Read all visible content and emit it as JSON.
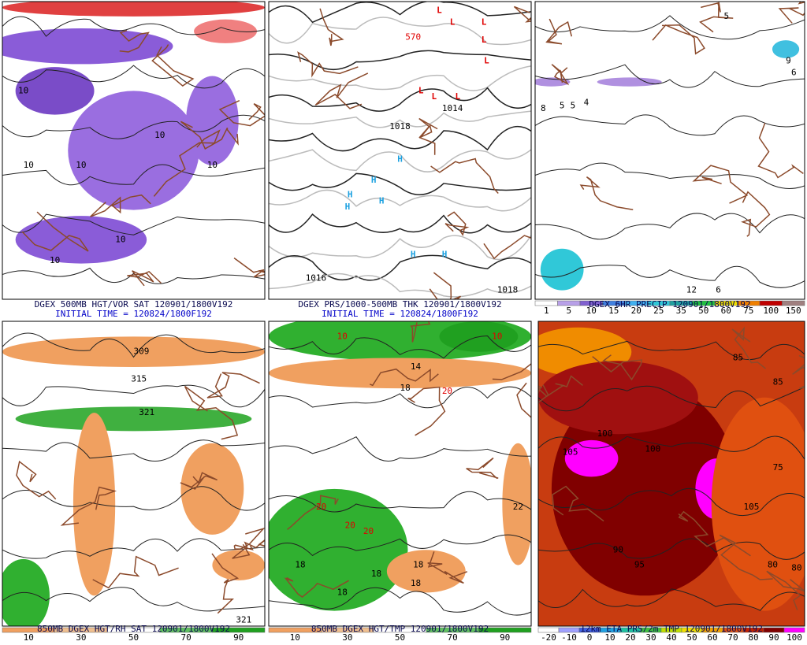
{
  "panels": [
    {
      "title": "DGEX 500MB HGT/VOR SAT 120901/1800V192",
      "subtitle": "INITIAL TIME = 120824/1800F192",
      "labels": [
        {
          "text": "10",
          "color": "#000"
        },
        {
          "text": "10",
          "color": "#000"
        },
        {
          "text": "10",
          "color": "#000"
        },
        {
          "text": "10",
          "color": "#000"
        },
        {
          "text": "10",
          "color": "#000"
        },
        {
          "text": "10",
          "color": "#000"
        },
        {
          "text": "10",
          "color": "#000"
        }
      ]
    },
    {
      "title": "DGEX PRS/1000-500MB THK 120901/1800V192",
      "subtitle": "INITIAL TIME = 120824/1800F192",
      "labels": [
        {
          "text": "L",
          "color": "#e00000"
        },
        {
          "text": "L",
          "color": "#e00000"
        },
        {
          "text": "L",
          "color": "#e00000"
        },
        {
          "text": "L",
          "color": "#e00000"
        },
        {
          "text": "L",
          "color": "#e00000"
        },
        {
          "text": "L",
          "color": "#e00000"
        },
        {
          "text": "L",
          "color": "#e00000"
        },
        {
          "text": "L",
          "color": "#e00000"
        },
        {
          "text": "H",
          "color": "#1aa0e0"
        },
        {
          "text": "H",
          "color": "#1aa0e0"
        },
        {
          "text": "H",
          "color": "#1aa0e0"
        },
        {
          "text": "H",
          "color": "#1aa0e0"
        },
        {
          "text": "H",
          "color": "#1aa0e0"
        },
        {
          "text": "H",
          "color": "#1aa0e0"
        },
        {
          "text": "H",
          "color": "#1aa0e0"
        },
        {
          "text": "1018",
          "color": "#000"
        },
        {
          "text": "1014",
          "color": "#000"
        },
        {
          "text": "1016",
          "color": "#000"
        },
        {
          "text": "1018",
          "color": "#000"
        },
        {
          "text": "570",
          "color": "#e00000"
        }
      ]
    },
    {
      "title": "DGEX 6HR PRECIP 120901/1800V192",
      "labels": [
        {
          "text": "5",
          "color": "#000"
        },
        {
          "text": "5",
          "color": "#000"
        },
        {
          "text": "5",
          "color": "#000"
        },
        {
          "text": "4",
          "color": "#000"
        },
        {
          "text": "8",
          "color": "#000"
        },
        {
          "text": "9",
          "color": "#000"
        },
        {
          "text": "6",
          "color": "#000"
        },
        {
          "text": "12",
          "color": "#000"
        },
        {
          "text": "6",
          "color": "#000"
        }
      ],
      "scale": [
        "1",
        "5",
        "10",
        "15",
        "20",
        "25",
        "35",
        "50",
        "60",
        "75",
        "100",
        "150"
      ]
    },
    {
      "title": "850MB DGEX HGT/RH SAT 120901/1800V192",
      "labels": [
        {
          "text": "309",
          "color": "#000"
        },
        {
          "text": "315",
          "color": "#000"
        },
        {
          "text": "321",
          "color": "#000"
        },
        {
          "text": "321",
          "color": "#000"
        }
      ],
      "scale": [
        "10",
        "30",
        "50",
        "70",
        "90"
      ]
    },
    {
      "title": "850MB DGEX HGT/TMP 120901/1800V192",
      "labels": [
        {
          "text": "10",
          "color": "#e00000"
        },
        {
          "text": "10",
          "color": "#e00000"
        },
        {
          "text": "14",
          "color": "#000"
        },
        {
          "text": "18",
          "color": "#000"
        },
        {
          "text": "20",
          "color": "#e00000"
        },
        {
          "text": "20",
          "color": "#e00000"
        },
        {
          "text": "20",
          "color": "#e00000"
        },
        {
          "text": "20",
          "color": "#e00000"
        },
        {
          "text": "22",
          "color": "#000"
        },
        {
          "text": "18",
          "color": "#000"
        },
        {
          "text": "18",
          "color": "#000"
        },
        {
          "text": "18",
          "color": "#000"
        },
        {
          "text": "18",
          "color": "#000"
        },
        {
          "text": "18",
          "color": "#000"
        }
      ],
      "scale": [
        "10",
        "30",
        "50",
        "70",
        "90"
      ]
    },
    {
      "title": "12km ETA PRS/2m TMP 120901/1800V192",
      "labels": [
        {
          "text": "105",
          "color": "#000"
        },
        {
          "text": "105",
          "color": "#000"
        },
        {
          "text": "100",
          "color": "#000"
        },
        {
          "text": "100",
          "color": "#000"
        },
        {
          "text": "85",
          "color": "#000"
        },
        {
          "text": "85",
          "color": "#000"
        },
        {
          "text": "90",
          "color": "#000"
        },
        {
          "text": "95",
          "color": "#000"
        },
        {
          "text": "80",
          "color": "#000"
        },
        {
          "text": "80",
          "color": "#000"
        },
        {
          "text": "75",
          "color": "#000"
        }
      ],
      "scale": [
        "-20",
        "-10",
        "0",
        "10",
        "20",
        "30",
        "40",
        "50",
        "60",
        "70",
        "80",
        "90",
        "100"
      ]
    }
  ]
}
